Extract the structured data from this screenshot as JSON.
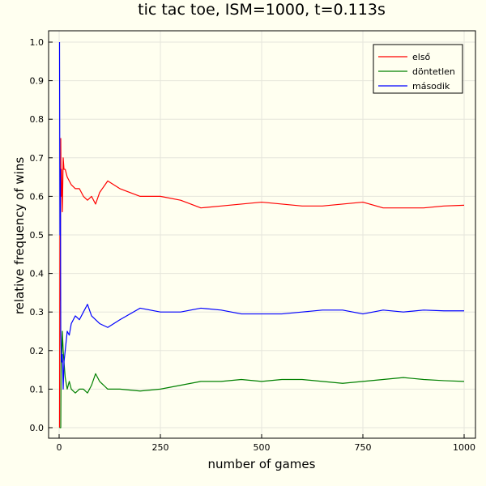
{
  "chart_data": {
    "type": "line",
    "title": "tic tac toe, ISM=1000, t=0.113s",
    "xlabel": "number of games",
    "ylabel": "relative frequency of wins",
    "xlim": [
      0,
      1000
    ],
    "ylim": [
      0.0,
      1.0
    ],
    "xticks": [
      0,
      250,
      500,
      750,
      1000
    ],
    "yticks": [
      0.0,
      0.1,
      0.2,
      0.3,
      0.4,
      0.5,
      0.6,
      0.7,
      0.8,
      0.9,
      1.0
    ],
    "xtick_labels": [
      "0",
      "250",
      "500",
      "750",
      "1000"
    ],
    "ytick_labels": [
      "0.0",
      "0.1",
      "0.2",
      "0.3",
      "0.4",
      "0.5",
      "0.6",
      "0.7",
      "0.8",
      "0.9",
      "1.0"
    ],
    "grid": true,
    "legend_position": "top-right",
    "series": [
      {
        "name": "első",
        "color": "#FF0000",
        "x": [
          1,
          2,
          3,
          4,
          5,
          6,
          8,
          10,
          12,
          15,
          20,
          25,
          30,
          40,
          50,
          60,
          70,
          80,
          90,
          100,
          120,
          150,
          200,
          250,
          300,
          350,
          400,
          450,
          500,
          550,
          600,
          650,
          700,
          750,
          800,
          850,
          900,
          950,
          1000
        ],
        "values": [
          0.0,
          0.5,
          0.33,
          0.75,
          0.6,
          0.67,
          0.56,
          0.7,
          0.67,
          0.67,
          0.65,
          0.64,
          0.63,
          0.62,
          0.62,
          0.6,
          0.59,
          0.6,
          0.58,
          0.61,
          0.64,
          0.62,
          0.6,
          0.6,
          0.59,
          0.57,
          0.575,
          0.58,
          0.585,
          0.58,
          0.575,
          0.575,
          0.58,
          0.585,
          0.57,
          0.57,
          0.57,
          0.575,
          0.577
        ]
      },
      {
        "name": "döntetlen",
        "color": "#008000",
        "x": [
          1,
          2,
          3,
          4,
          5,
          6,
          8,
          10,
          12,
          15,
          20,
          25,
          30,
          40,
          50,
          60,
          70,
          80,
          90,
          100,
          120,
          150,
          200,
          250,
          300,
          350,
          400,
          450,
          500,
          550,
          600,
          650,
          700,
          750,
          800,
          850,
          900,
          950,
          1000
        ],
        "values": [
          0.0,
          0.0,
          0.0,
          0.0,
          0.2,
          0.17,
          0.25,
          0.2,
          0.17,
          0.13,
          0.1,
          0.12,
          0.1,
          0.09,
          0.1,
          0.1,
          0.09,
          0.11,
          0.14,
          0.12,
          0.1,
          0.1,
          0.095,
          0.1,
          0.11,
          0.12,
          0.12,
          0.125,
          0.12,
          0.125,
          0.125,
          0.12,
          0.115,
          0.12,
          0.125,
          0.13,
          0.125,
          0.122,
          0.12
        ]
      },
      {
        "name": "második",
        "color": "#0000FF",
        "x": [
          1,
          2,
          3,
          4,
          5,
          6,
          8,
          10,
          12,
          15,
          20,
          25,
          30,
          40,
          50,
          60,
          70,
          80,
          90,
          100,
          120,
          150,
          200,
          250,
          300,
          350,
          400,
          450,
          500,
          550,
          600,
          650,
          700,
          750,
          800,
          850,
          900,
          950,
          1000
        ],
        "values": [
          1.0,
          0.5,
          0.67,
          0.25,
          0.2,
          0.17,
          0.19,
          0.1,
          0.17,
          0.2,
          0.25,
          0.24,
          0.27,
          0.29,
          0.28,
          0.3,
          0.32,
          0.29,
          0.28,
          0.27,
          0.26,
          0.28,
          0.31,
          0.3,
          0.3,
          0.31,
          0.305,
          0.295,
          0.295,
          0.295,
          0.3,
          0.305,
          0.305,
          0.295,
          0.305,
          0.3,
          0.305,
          0.303,
          0.303
        ]
      }
    ]
  }
}
